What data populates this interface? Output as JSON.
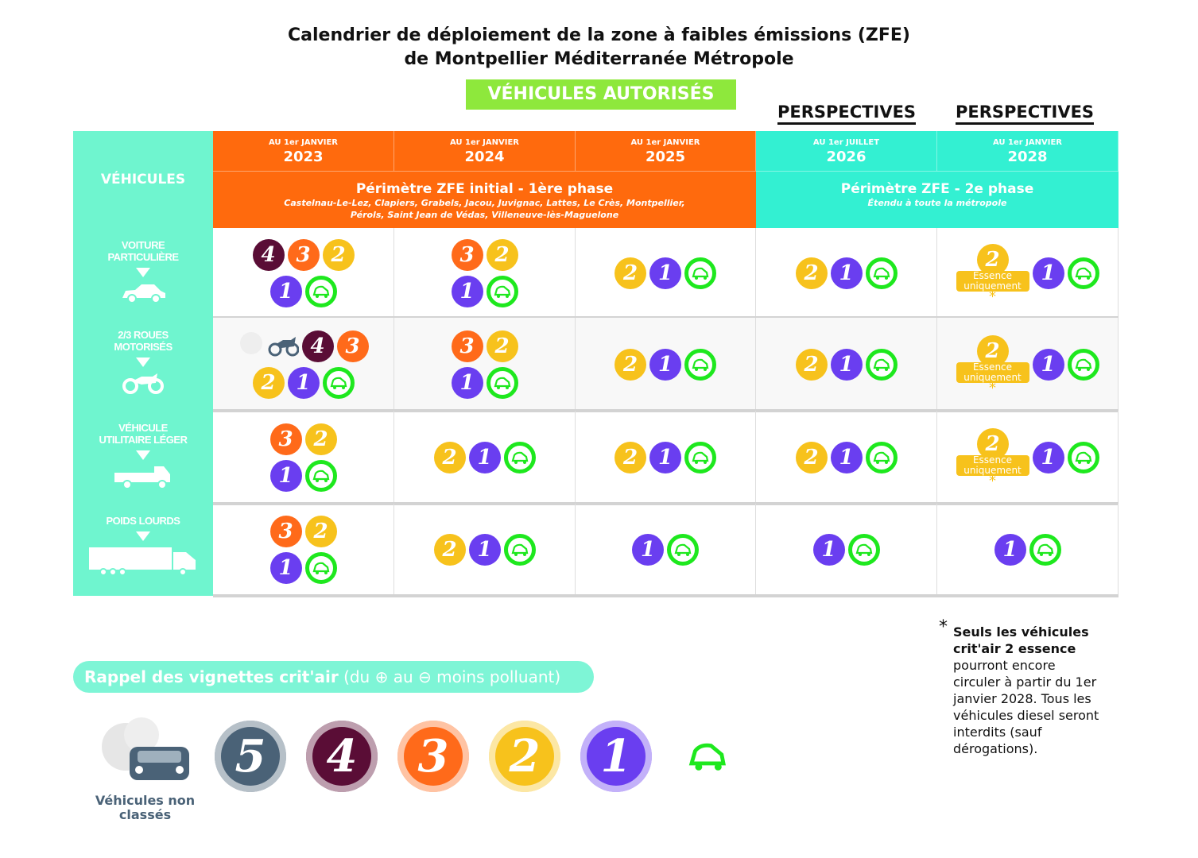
{
  "title": {
    "line1": "Calendrier de déploiement de la zone à faibles émissions (ZFE)",
    "line2": "de Montpellier Méditerranée Métropole"
  },
  "authorized_label": "VÉHICULES AUTORISÉS",
  "perspectives": [
    "PERSPECTIVES",
    "PERSPECTIVES"
  ],
  "vehicles_header": "VÉHICULES",
  "columns": [
    {
      "sub": "AU 1er JANVIER",
      "year": "2023"
    },
    {
      "sub": "AU 1er JANVIER",
      "year": "2024"
    },
    {
      "sub": "AU 1er JANVIER",
      "year": "2025"
    },
    {
      "sub": "AU 1er JUILLET",
      "year": "2026"
    },
    {
      "sub": "AU 1er JANVIER",
      "year": "2028"
    }
  ],
  "phases": [
    {
      "title": "Périmètre ZFE initial - 1ère phase",
      "communes": "Castelnau-Le-Lez, Clapiers, Grabels, Jacou, Juvignac, Lattes, Le Crès, Montpellier, Pérols, Saint Jean de Védas, Villeneuve-lès-Maguelone"
    },
    {
      "title": "Périmètre ZFE - 2e phase",
      "communes": "Étendu à toute la métropole"
    }
  ],
  "colors": {
    "5": "#4a6277",
    "4": "#5a0d36",
    "3": "#ff6a1a",
    "2": "#f7c21c",
    "1": "#6a3ef0",
    "E": "#1ee81e",
    "orange": "#ff6a0d",
    "teal": "#6ff5cf",
    "cyan": "#33f0d2"
  },
  "essence_label": "Essence uniquement",
  "rows": [
    {
      "label1": "VOITURE",
      "label2": "PARTICULIÈRE",
      "icon": "car-icon",
      "cells": [
        [
          [
            "4",
            "3",
            "2"
          ],
          [
            "1",
            "E"
          ]
        ],
        [
          [
            "3",
            "2"
          ],
          [
            "1",
            "E"
          ]
        ],
        [
          [
            "2",
            "1",
            "E"
          ]
        ],
        [
          [
            "2",
            "1",
            "E"
          ]
        ],
        [
          [
            "2*",
            "1",
            "E"
          ]
        ]
      ]
    },
    {
      "label1": "2/3 ROUES",
      "label2": "MOTORISÉS",
      "icon": "motorcycle-icon",
      "cells": [
        [
          [
            "NC",
            "4",
            "3"
          ],
          [
            "2",
            "1",
            "E"
          ]
        ],
        [
          [
            "3",
            "2"
          ],
          [
            "1",
            "E"
          ]
        ],
        [
          [
            "2",
            "1",
            "E"
          ]
        ],
        [
          [
            "2",
            "1",
            "E"
          ]
        ],
        [
          [
            "2*",
            "1",
            "E"
          ]
        ]
      ]
    },
    {
      "label1": "VÉHICULE",
      "label2": "UTILITAIRE LÉGER",
      "icon": "truck-icon",
      "cells": [
        [
          [
            "3",
            "2"
          ],
          [
            "1",
            "E"
          ]
        ],
        [
          [
            "2",
            "1",
            "E"
          ]
        ],
        [
          [
            "2",
            "1",
            "E"
          ]
        ],
        [
          [
            "2",
            "1",
            "E"
          ]
        ],
        [
          [
            "2*",
            "1",
            "E"
          ]
        ]
      ]
    },
    {
      "label1": "POIDS LOURDS",
      "label2": "",
      "icon": "lorry-icon",
      "cells": [
        [
          [
            "3",
            "2"
          ],
          [
            "1",
            "E"
          ]
        ],
        [
          [
            "2",
            "1",
            "E"
          ]
        ],
        [
          [
            "1",
            "E"
          ]
        ],
        [
          [
            "1",
            "E"
          ]
        ],
        [
          [
            "1",
            "E"
          ]
        ]
      ]
    }
  ],
  "footnote": {
    "star": "*",
    "bold": "Seuls les véhicules crit'air 2 essence",
    "text": "pourront encore circuler à partir du 1er janvier 2028. Tous les véhicules diesel seront interdits (sauf dérogations)."
  },
  "reminder": {
    "bold": "Rappel des vignettes crit'air",
    "p1": "(du",
    "p2": "au",
    "p3": "moins polluant)"
  },
  "legend": {
    "unclassified": "Véhicules non classés",
    "badges": [
      "5",
      "4",
      "3",
      "2",
      "1",
      "E"
    ]
  }
}
